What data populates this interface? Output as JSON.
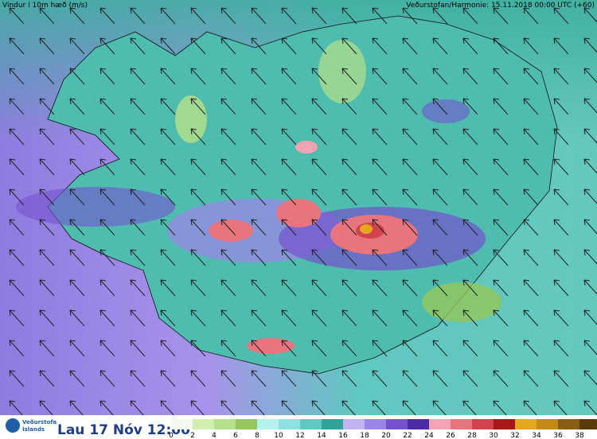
{
  "header": {
    "title": "Vindur í 10m hæð (m/s)",
    "source": "Veðurstofan/Harmonie: 15.11.2018 00:00 UTC (+60)"
  },
  "footer": {
    "logo": [
      "Veðurstofa",
      "Íslands"
    ],
    "time": "Lau 17 Nóv 12:00"
  },
  "legend": {
    "levels": [
      0,
      2,
      4,
      6,
      8,
      10,
      12,
      14,
      16,
      18,
      20,
      22,
      24,
      26,
      28,
      30,
      32,
      34,
      36,
      38
    ],
    "colors": [
      "#f4fbee",
      "#d2efb0",
      "#b7e08a",
      "#93c75a",
      "#b4f2ee",
      "#8ce2de",
      "#5fc8c0",
      "#2fa39a",
      "#c2b4f2",
      "#9c84e8",
      "#7453cf",
      "#4c2ba6",
      "#f4a3b2",
      "#e8747e",
      "#d4434b",
      "#a81616",
      "#e6a61e",
      "#c48a14",
      "#8a5e10",
      "#5a3a08"
    ]
  }
}
